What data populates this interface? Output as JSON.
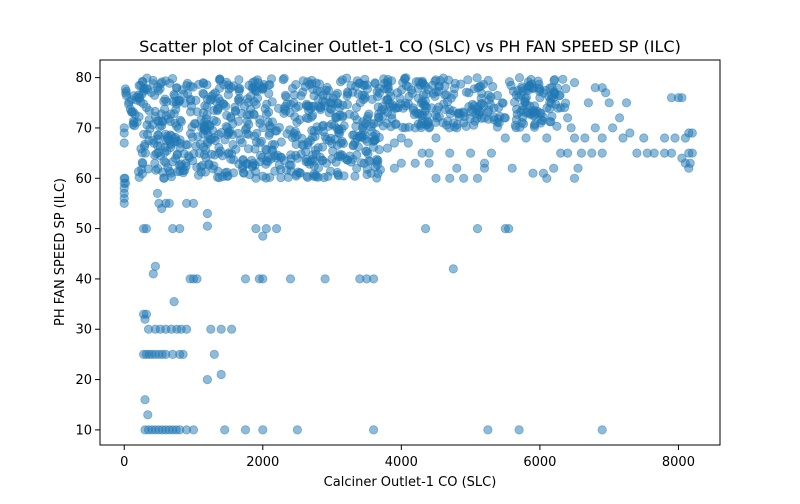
{
  "chart_data": {
    "type": "scatter",
    "title": "Scatter plot of Calciner Outlet-1 CO (SLC) vs PH FAN SPEED SP (ILC)",
    "xlabel": "Calciner Outlet-1 CO (SLC)",
    "ylabel": "PH FAN SPEED SP (ILC)",
    "xlim": [
      -350,
      8600
    ],
    "ylim": [
      7,
      83.5
    ],
    "xticks": [
      0,
      2000,
      4000,
      6000,
      8000
    ],
    "yticks": [
      10,
      20,
      30,
      40,
      50,
      60,
      70,
      80
    ],
    "grid": false,
    "point_color": "#1f77b4",
    "point_alpha": 0.5,
    "bands": [
      {
        "x_start": 50,
        "x_end": 6400,
        "y_min": 70,
        "y_max": 80,
        "description": "dense cluster"
      },
      {
        "x_start": 200,
        "x_end": 3700,
        "y_min": 60,
        "y_max": 70,
        "description": "dense cluster"
      },
      {
        "x_start": 0,
        "x_end": 40,
        "y_min": 75,
        "y_max": 79,
        "description": "dense column at zero"
      }
    ],
    "points": [
      [
        0,
        55
      ],
      [
        0,
        56
      ],
      [
        0,
        57
      ],
      [
        0,
        58
      ],
      [
        0,
        59
      ],
      [
        0,
        60
      ],
      [
        10,
        60
      ],
      [
        20,
        59
      ],
      [
        0,
        67
      ],
      [
        0,
        69
      ],
      [
        0,
        70
      ],
      [
        280,
        33
      ],
      [
        300,
        32
      ],
      [
        320,
        33
      ],
      [
        280,
        25
      ],
      [
        320,
        25
      ],
      [
        360,
        25
      ],
      [
        400,
        25
      ],
      [
        450,
        25
      ],
      [
        500,
        25
      ],
      [
        550,
        25
      ],
      [
        600,
        25
      ],
      [
        350,
        30
      ],
      [
        450,
        30
      ],
      [
        520,
        30
      ],
      [
        600,
        30
      ],
      [
        680,
        30
      ],
      [
        760,
        30
      ],
      [
        820,
        30
      ],
      [
        900,
        30
      ],
      [
        700,
        25
      ],
      [
        800,
        25
      ],
      [
        850,
        25
      ],
      [
        300,
        10
      ],
      [
        350,
        10
      ],
      [
        400,
        10
      ],
      [
        450,
        10
      ],
      [
        500,
        10
      ],
      [
        550,
        10
      ],
      [
        600,
        10
      ],
      [
        650,
        10
      ],
      [
        700,
        10
      ],
      [
        750,
        10
      ],
      [
        800,
        10
      ],
      [
        900,
        10
      ],
      [
        1000,
        10
      ],
      [
        1450,
        10
      ],
      [
        1750,
        10
      ],
      [
        2000,
        10
      ],
      [
        2500,
        10
      ],
      [
        3600,
        10
      ],
      [
        5250,
        10
      ],
      [
        5700,
        10
      ],
      [
        6900,
        10
      ],
      [
        300,
        16
      ],
      [
        340,
        13
      ],
      [
        280,
        50
      ],
      [
        320,
        50
      ],
      [
        480,
        57
      ],
      [
        500,
        55
      ],
      [
        540,
        54
      ],
      [
        600,
        55
      ],
      [
        650,
        55
      ],
      [
        700,
        50
      ],
      [
        800,
        50
      ],
      [
        900,
        55
      ],
      [
        1000,
        55
      ],
      [
        1200,
        53
      ],
      [
        1200,
        50.5
      ],
      [
        450,
        42.5
      ],
      [
        420,
        41
      ],
      [
        950,
        40
      ],
      [
        1000,
        40
      ],
      [
        1050,
        40
      ],
      [
        1750,
        40
      ],
      [
        1950,
        40
      ],
      [
        2000,
        40
      ],
      [
        2400,
        40
      ],
      [
        2900,
        40
      ],
      [
        3400,
        40
      ],
      [
        3500,
        40
      ],
      [
        3600,
        40
      ],
      [
        4750,
        42
      ],
      [
        1900,
        50
      ],
      [
        2000,
        48.5
      ],
      [
        2050,
        50
      ],
      [
        2200,
        50
      ],
      [
        4350,
        50
      ],
      [
        5100,
        50
      ],
      [
        5500,
        50
      ],
      [
        5550,
        50
      ],
      [
        1250,
        30
      ],
      [
        1300,
        25
      ],
      [
        1400,
        30
      ],
      [
        1550,
        30
      ],
      [
        1400,
        21
      ],
      [
        1200,
        20
      ],
      [
        720,
        35.5
      ],
      [
        6300,
        65
      ],
      [
        6400,
        65
      ],
      [
        6600,
        65
      ],
      [
        6650,
        68
      ],
      [
        6750,
        65
      ],
      [
        6800,
        70
      ],
      [
        6900,
        65
      ],
      [
        6900,
        68
      ],
      [
        6950,
        77
      ],
      [
        7000,
        75
      ],
      [
        7050,
        70
      ],
      [
        7150,
        72
      ],
      [
        7200,
        68
      ],
      [
        7300,
        69
      ],
      [
        7400,
        65
      ],
      [
        7500,
        68
      ],
      [
        7550,
        65
      ],
      [
        7650,
        65
      ],
      [
        7800,
        65
      ],
      [
        7800,
        68
      ],
      [
        7900,
        65
      ],
      [
        7950,
        68
      ],
      [
        8000,
        76
      ],
      [
        8050,
        64
      ],
      [
        8100,
        68
      ],
      [
        7900,
        76
      ],
      [
        8050,
        76
      ],
      [
        8100,
        63
      ],
      [
        8150,
        62
      ],
      [
        8150,
        69
      ],
      [
        8200,
        69
      ],
      [
        8150,
        65
      ],
      [
        8200,
        65
      ],
      [
        8170,
        63
      ],
      [
        6500,
        79
      ],
      [
        6800,
        78
      ],
      [
        6900,
        78
      ],
      [
        7250,
        75
      ],
      [
        6700,
        75
      ],
      [
        5900,
        78
      ],
      [
        6000,
        76
      ],
      [
        6200,
        76
      ],
      [
        4300,
        65
      ],
      [
        4400,
        65
      ],
      [
        4700,
        65
      ],
      [
        5000,
        65
      ],
      [
        5300,
        65
      ],
      [
        5500,
        68
      ],
      [
        5800,
        68
      ],
      [
        6100,
        68
      ],
      [
        4500,
        68
      ],
      [
        4800,
        70
      ],
      [
        5200,
        62
      ],
      [
        5600,
        62
      ],
      [
        5900,
        61
      ],
      [
        6200,
        62
      ],
      [
        6100,
        60
      ],
      [
        6050,
        61
      ],
      [
        6500,
        60
      ],
      [
        6550,
        62
      ],
      [
        4700,
        60
      ],
      [
        4900,
        60
      ],
      [
        5100,
        60
      ],
      [
        5200,
        63
      ],
      [
        3900,
        62
      ],
      [
        4000,
        63
      ],
      [
        4200,
        63
      ],
      [
        4400,
        63
      ],
      [
        4500,
        60
      ],
      [
        4800,
        62
      ],
      [
        3800,
        66
      ],
      [
        3900,
        67
      ],
      [
        4000,
        68
      ],
      [
        4100,
        67
      ],
      [
        4200,
        70
      ],
      [
        4400,
        70
      ],
      [
        4600,
        71
      ],
      [
        4900,
        71
      ],
      [
        5200,
        72
      ],
      [
        5500,
        72
      ],
      [
        5800,
        73
      ],
      [
        6000,
        73
      ],
      [
        6300,
        74
      ],
      [
        6400,
        72
      ],
      [
        6450,
        70
      ],
      [
        6500,
        68
      ]
    ]
  }
}
